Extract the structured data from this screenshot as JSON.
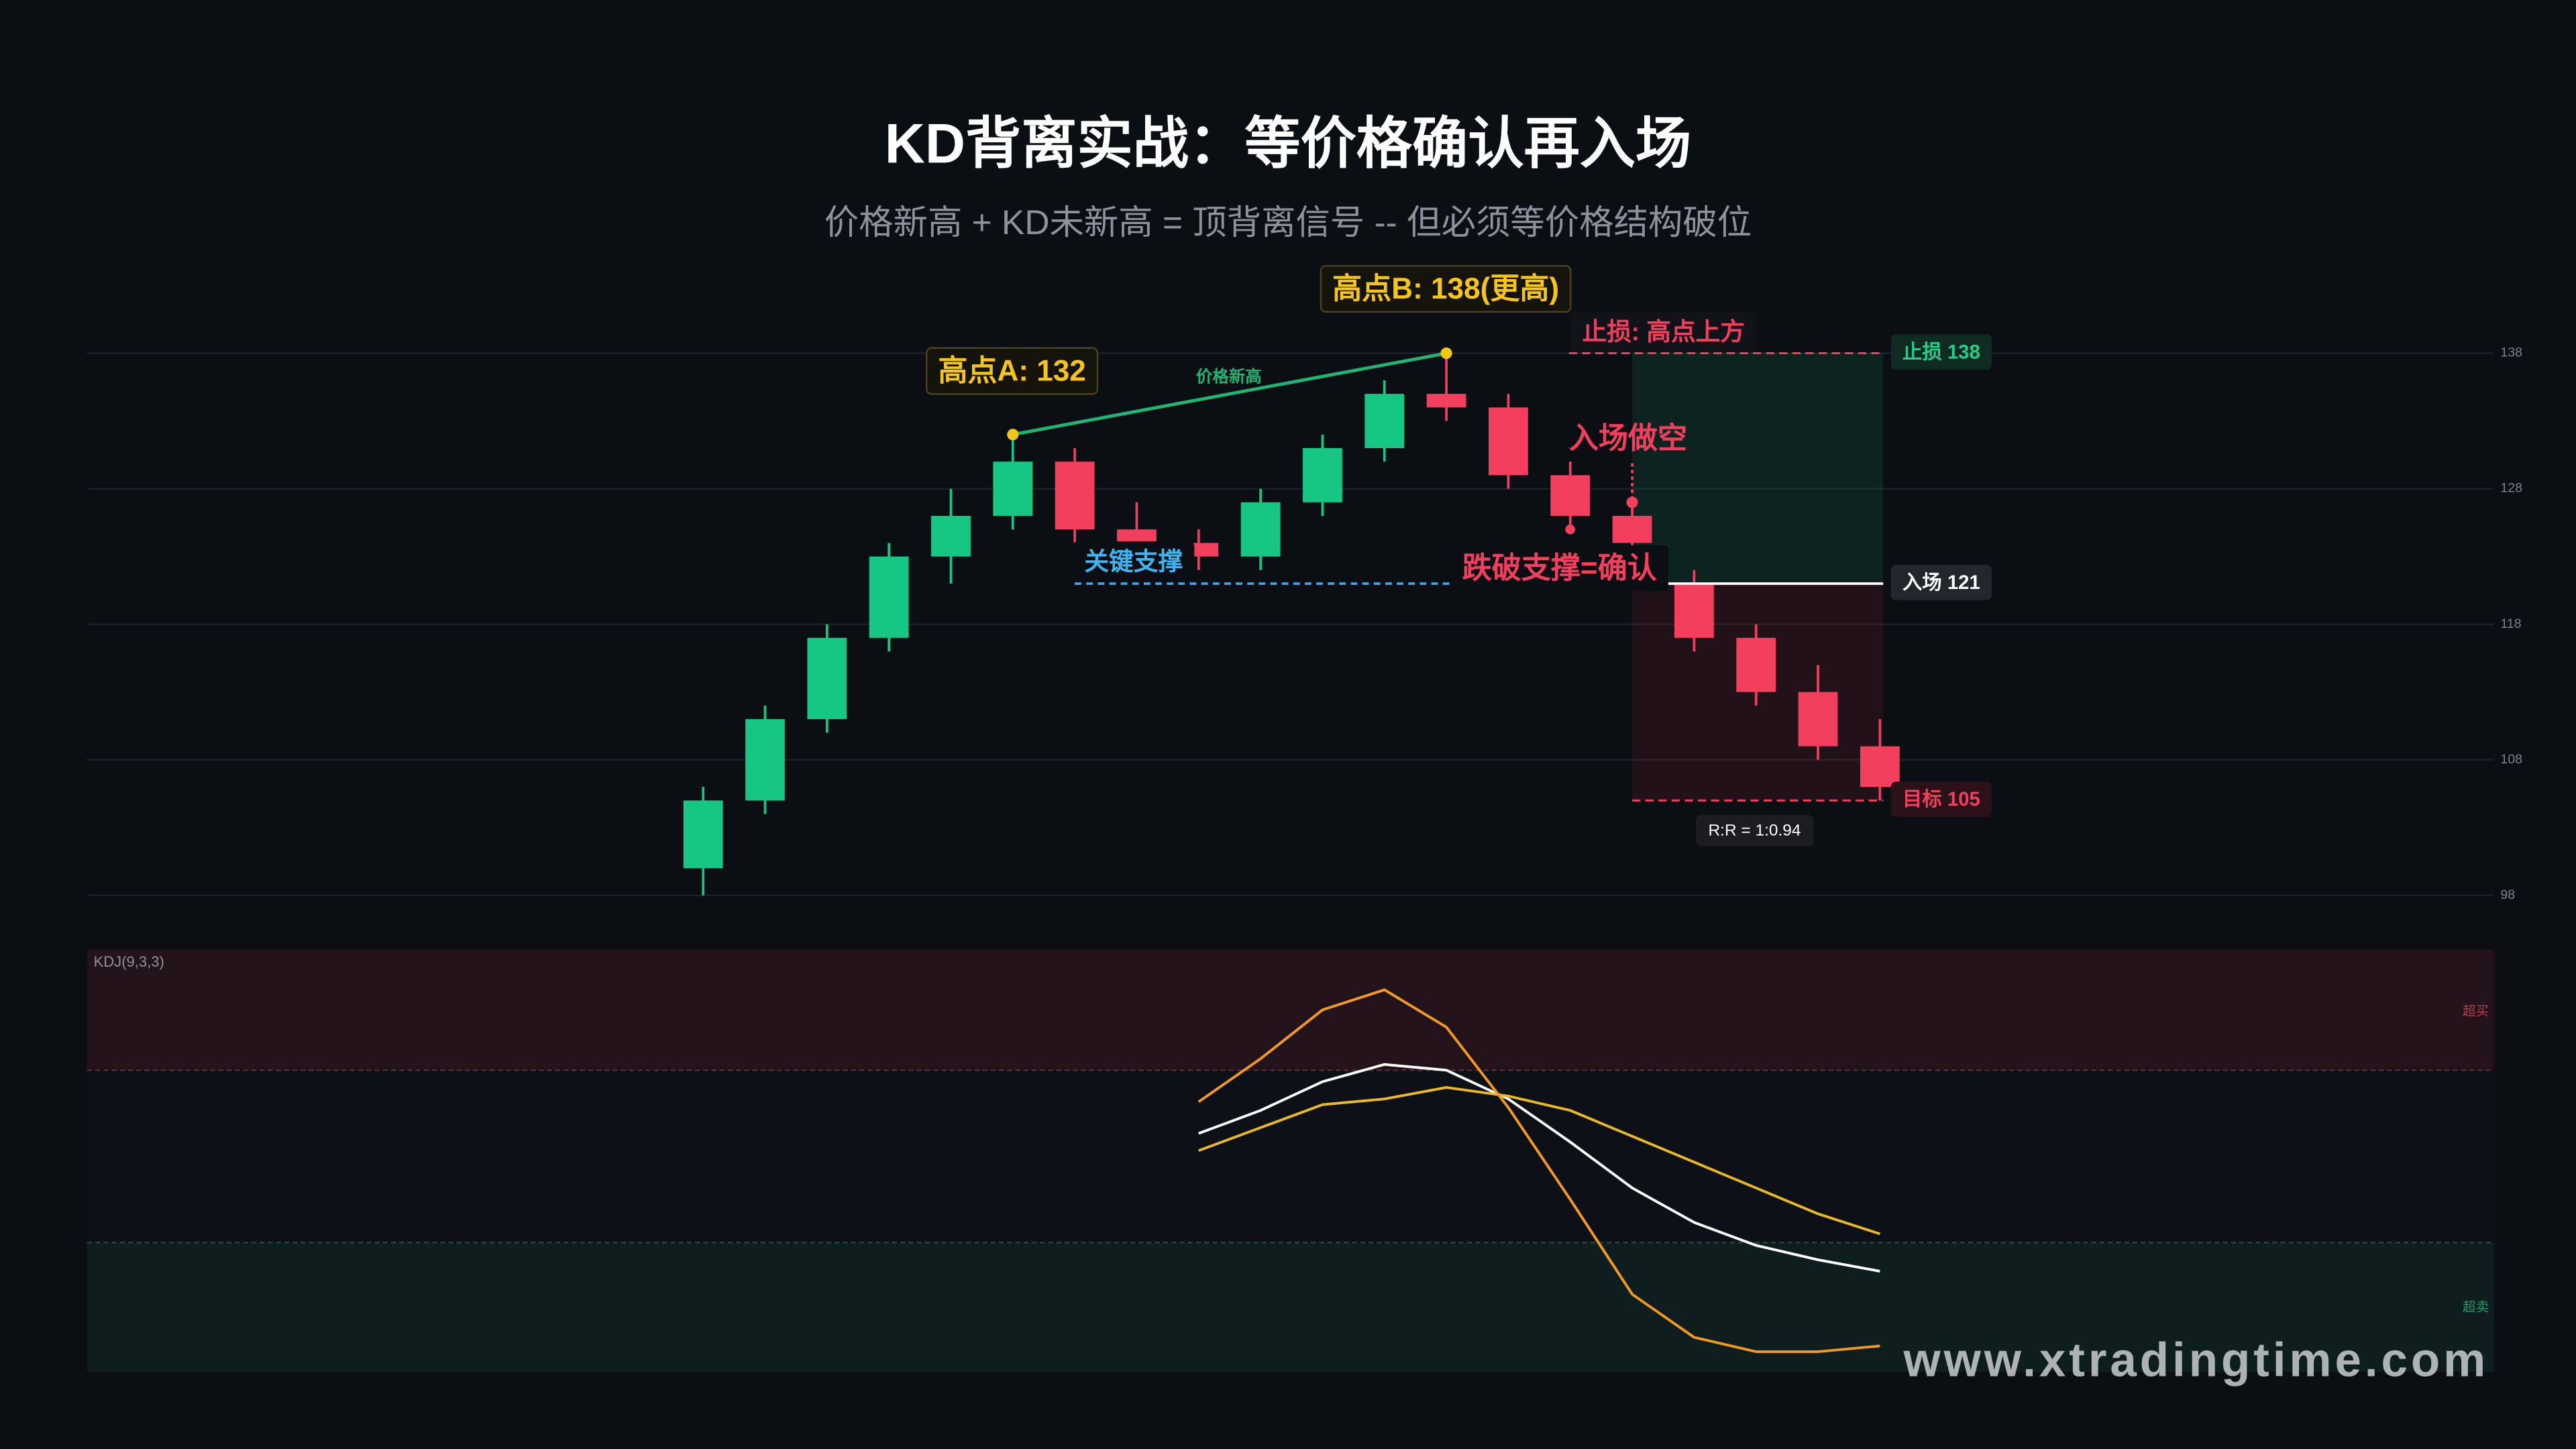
{
  "title": "KD背离实战：等价格确认再入场",
  "subtitle": "价格新高 + KD未新高 = 顶背离信号 -- 但必须等价格结构破位",
  "watermark": "www.xtradingtime.com",
  "chart_data": [
    {
      "type": "candlestick",
      "open": [
        100,
        105,
        111,
        117,
        123,
        126,
        130,
        125,
        124,
        123,
        127,
        131,
        135,
        134,
        129,
        126,
        121,
        117,
        113,
        109
      ],
      "high": [
        106,
        112,
        118,
        124,
        128,
        132,
        131,
        127,
        125,
        128,
        132,
        136,
        138,
        135,
        130,
        127,
        122,
        118,
        115,
        111
      ],
      "low": [
        98,
        104,
        110,
        116,
        121,
        125,
        124,
        123,
        122,
        122,
        126,
        130,
        133,
        128,
        125,
        123,
        116,
        112,
        108,
        105
      ],
      "close": [
        105,
        111,
        117,
        123,
        126,
        130,
        125,
        124,
        123,
        127,
        131,
        135,
        134,
        129,
        126,
        124,
        117,
        113,
        109,
        106
      ],
      "ylim": [
        96,
        140
      ],
      "yticks": [
        98,
        108,
        118,
        128,
        138
      ],
      "grid": true,
      "up_color": "#16c784",
      "down_color": "#f23f5d",
      "high_a_label": "高点A: 132",
      "high_b_label": "高点B: 138(更高)",
      "divergence_label": "价格新高",
      "support": {
        "value": 121,
        "label": "关键支撑"
      },
      "breakdown_label": "跌破支撑=确认",
      "entry_note": "入场做空",
      "stop_note": "止损: 高点上方",
      "trade": {
        "stop": {
          "value": 138,
          "label": "止损 138"
        },
        "entry": {
          "value": 121,
          "label": "入场 121"
        },
        "target": {
          "value": 105,
          "label": "目标 105"
        },
        "rr": "R:R = 1:0.94"
      }
    },
    {
      "type": "line",
      "label": "KDJ(9,3,3)",
      "ylim": [
        -25,
        122
      ],
      "overbought": {
        "value": 80,
        "label": "超买"
      },
      "oversold": {
        "value": 20,
        "label": "超卖"
      },
      "series": [
        {
          "color": "#ffffff",
          "values": [
            null,
            null,
            null,
            null,
            null,
            null,
            null,
            null,
            58,
            66,
            76,
            82,
            80,
            70,
            55,
            39,
            27,
            19,
            14,
            10
          ]
        },
        {
          "color": "#e8b923",
          "values": [
            null,
            null,
            null,
            null,
            null,
            null,
            null,
            null,
            52,
            60,
            68,
            70,
            74,
            71,
            66,
            57,
            48,
            39,
            30,
            23
          ]
        },
        {
          "color": "#f39a1e",
          "values": [
            null,
            null,
            null,
            null,
            null,
            null,
            null,
            null,
            69,
            84,
            101,
            108,
            95,
            67,
            35,
            2,
            -13,
            -18,
            -18,
            -16
          ]
        }
      ]
    }
  ]
}
